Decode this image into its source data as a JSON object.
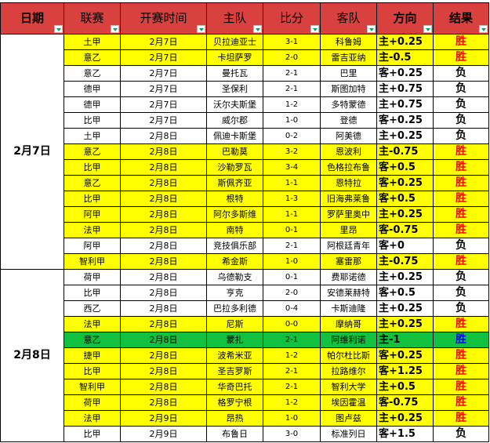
{
  "headers": [
    "日期",
    "联赛",
    "开赛时间",
    "主队",
    "比分",
    "客队",
    "方向",
    "结果"
  ],
  "colors": {
    "header": "#d9413f",
    "highlight": "#ffff00",
    "green": "#12c13f",
    "win": "#ff0000"
  },
  "groups": [
    {
      "date": "2月7日",
      "rows": [
        {
          "league": "土甲",
          "time": "2月7日",
          "home": "贝拉迪亚士",
          "score": "3-1",
          "away": "科鲁姆",
          "dir": "主+0.25",
          "result": "胜",
          "style": "yellow"
        },
        {
          "league": "意乙",
          "time": "2月7日",
          "home": "卡坦萨罗",
          "score": "2-0",
          "away": "雷吉亚纳",
          "dir": "主-0.5",
          "result": "胜",
          "style": "yellow"
        },
        {
          "league": "意乙",
          "time": "2月7日",
          "home": "曼托瓦",
          "score": "2-1",
          "away": "巴里",
          "dir": "客+0.25",
          "result": "负",
          "style": "white"
        },
        {
          "league": "德甲",
          "time": "2月7日",
          "home": "圣保利",
          "score": "2-1",
          "away": "斯图加特",
          "dir": "主+0.75",
          "result": "负",
          "style": "white"
        },
        {
          "league": "德甲",
          "time": "2月7日",
          "home": "沃尔夫斯堡",
          "score": "1-2",
          "away": "多特蒙德",
          "dir": "主+0.75",
          "result": "负",
          "style": "white"
        },
        {
          "league": "比甲",
          "time": "2月7日",
          "home": "威尔郡",
          "score": "1-0",
          "away": "登德",
          "dir": "客+0.25",
          "result": "负",
          "style": "white"
        },
        {
          "league": "土甲",
          "time": "2月8日",
          "home": "佩迪卡斯堡",
          "score": "0-2",
          "away": "阿美德",
          "dir": "主+0.25",
          "result": "负",
          "style": "white"
        },
        {
          "league": "意乙",
          "time": "2月8日",
          "home": "巴勒莫",
          "score": "3-2",
          "away": "恩波利",
          "dir": "主-0.75",
          "result": "胜",
          "style": "yellow"
        },
        {
          "league": "比甲",
          "time": "2月8日",
          "home": "沙勒罗瓦",
          "score": "3-4",
          "away": "色格拉布鲁",
          "dir": "客+0.5",
          "result": "胜",
          "style": "yellow"
        },
        {
          "league": "意乙",
          "time": "2月8日",
          "home": "斯佩齐亚",
          "score": "1-1",
          "away": "恩特拉",
          "dir": "客+0.25",
          "result": "胜",
          "style": "yellow"
        },
        {
          "league": "比甲",
          "time": "2月8日",
          "home": "根特",
          "score": "1-3",
          "away": "旧海弗莱鲁",
          "dir": "客+0.5",
          "result": "胜",
          "style": "yellow"
        },
        {
          "league": "阿甲",
          "time": "2月8日",
          "home": "阿尔多斯维",
          "score": "1-1",
          "away": "罗萨里奥中",
          "dir": "主+0.25",
          "result": "胜",
          "style": "yellow"
        },
        {
          "league": "法甲",
          "time": "2月8日",
          "home": "南特",
          "score": "0-1",
          "away": "里昂",
          "dir": "客-0.75",
          "result": "胜",
          "style": "yellow"
        },
        {
          "league": "阿甲",
          "time": "2月8日",
          "home": "竞技俱乐部",
          "score": "2-1",
          "away": "阿根廷青年",
          "dir": "客+0",
          "result": "负",
          "style": "white"
        },
        {
          "league": "智利甲",
          "time": "2月8日",
          "home": "希金斯",
          "score": "1-0",
          "away": "塞雷那",
          "dir": "主-0.75",
          "result": "胜",
          "style": "yellow"
        }
      ]
    },
    {
      "date": "2月8日",
      "rows": [
        {
          "league": "荷甲",
          "time": "2月8日",
          "home": "乌德勒支",
          "score": "0-1",
          "away": "费耶诺德",
          "dir": "主+0.25",
          "result": "负",
          "style": "white"
        },
        {
          "league": "比甲",
          "time": "2月8日",
          "home": "亨克",
          "score": "2-0",
          "away": "安德莱赫特",
          "dir": "客+0.5",
          "result": "负",
          "style": "white"
        },
        {
          "league": "西乙",
          "time": "2月8日",
          "home": "巴拉多利德",
          "score": "0-4",
          "away": "卡斯迪隆",
          "dir": "主+0.25",
          "result": "负",
          "style": "white"
        },
        {
          "league": "法甲",
          "time": "2月8日",
          "home": "尼斯",
          "score": "0-0",
          "away": "摩纳哥",
          "dir": "主+0.25",
          "result": "胜",
          "style": "yellow"
        },
        {
          "league": "意乙",
          "time": "2月8日",
          "home": "蒙扎",
          "score": "2-1",
          "away": "阿维利诺",
          "dir": "主-1",
          "result": "胜",
          "style": "green"
        },
        {
          "league": "捷甲",
          "time": "2月8日",
          "home": "波希米亚",
          "score": "1-2",
          "away": "帕尔杜比斯",
          "dir": "客+0.25",
          "result": "胜",
          "style": "yellow"
        },
        {
          "league": "比甲",
          "time": "2月8日",
          "home": "圣吉罗斯",
          "score": "2-1",
          "away": "拉路维尔",
          "dir": "客+1.25",
          "result": "胜",
          "style": "yellow"
        },
        {
          "league": "智利甲",
          "time": "2月8日",
          "home": "华奇巴托",
          "score": "2-1",
          "away": "智利大学",
          "dir": "主+0.5",
          "result": "胜",
          "style": "yellow"
        },
        {
          "league": "荷甲",
          "time": "2月8日",
          "home": "格罗宁根",
          "score": "1-2",
          "away": "埃因霍温",
          "dir": "客-0.75",
          "result": "胜",
          "style": "yellow"
        },
        {
          "league": "法甲",
          "time": "2月9日",
          "home": "昂热",
          "score": "1-0",
          "away": "图卢兹",
          "dir": "主+0.25",
          "result": "胜",
          "style": "yellow"
        },
        {
          "league": "比甲",
          "time": "2月9日",
          "home": "布鲁日",
          "score": "3-0",
          "away": "标准列日",
          "dir": "客+1.5",
          "result": "负",
          "style": "white"
        }
      ]
    }
  ]
}
